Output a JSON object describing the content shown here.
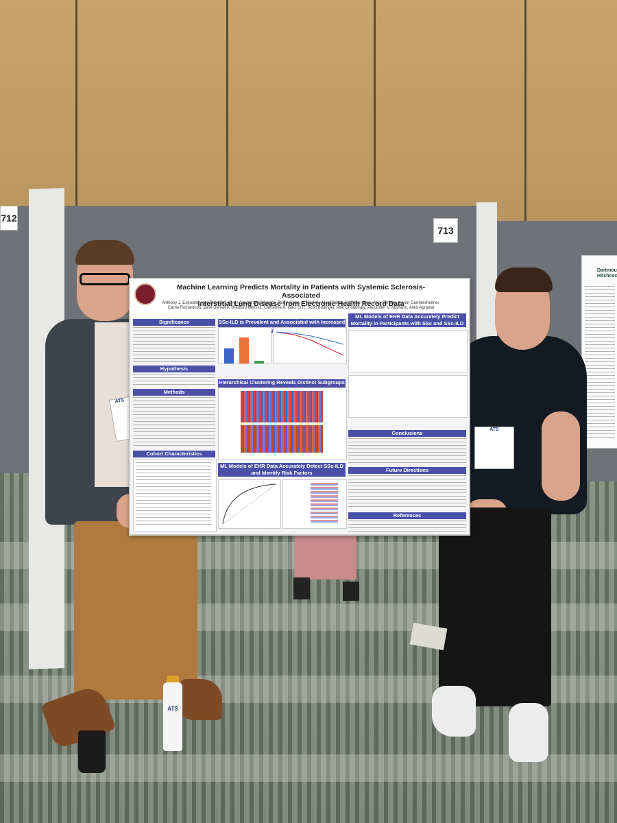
{
  "booth_numbers": {
    "left": "712",
    "center": "713"
  },
  "poster": {
    "title_line1": "Machine Learning Predicts Mortality in Patients with Systemic Sclerosis-Associated",
    "title_line2": "Interstitial Lung Disease from Electronic Health Record Data",
    "authors": "Anthony J. Esposito, Aleo Patekian, Kevin Grudzinski, Mengou Zhu, Nikolay S. Markov, Mary Carns, Kathleen Aren, Alex Soriano, Aaron Gundersheimer, Carrie Richardson, Jane Dematte, Bradford Bemiss, Catherine A. Gao, G.R. Scott Budinger, Alok Choudhary, Alexander V. Misharin, Ankit Agrawal",
    "sections_left": [
      "Significance",
      "Hypothesis",
      "Methods",
      "Cohort Characteristics"
    ],
    "section_center_top": "SSc-ILD is Prevalent and Associated with Increased Mortality",
    "section_center_mid": "Hierarchical Clustering Reveals Distinct Subgroups of SSc Patients",
    "section_center_bottom_line1": "ML Models of EHR Data Accurately Detect SSc-ILD",
    "section_center_bottom_line2": "and Identify Risk Factors",
    "section_right_top_line1": "ML Models of EHR Data Accurately Predict",
    "section_right_top_line2": "Mortality in Participants with SSc and SSc-ILD",
    "sections_right": [
      "Conclusions",
      "Future Directions",
      "References"
    ]
  },
  "badges": {
    "left": "ATS",
    "right": "ATS"
  },
  "bottle_label": "ATS",
  "side_poster_heading": "Dartmouth Hitchcock"
}
